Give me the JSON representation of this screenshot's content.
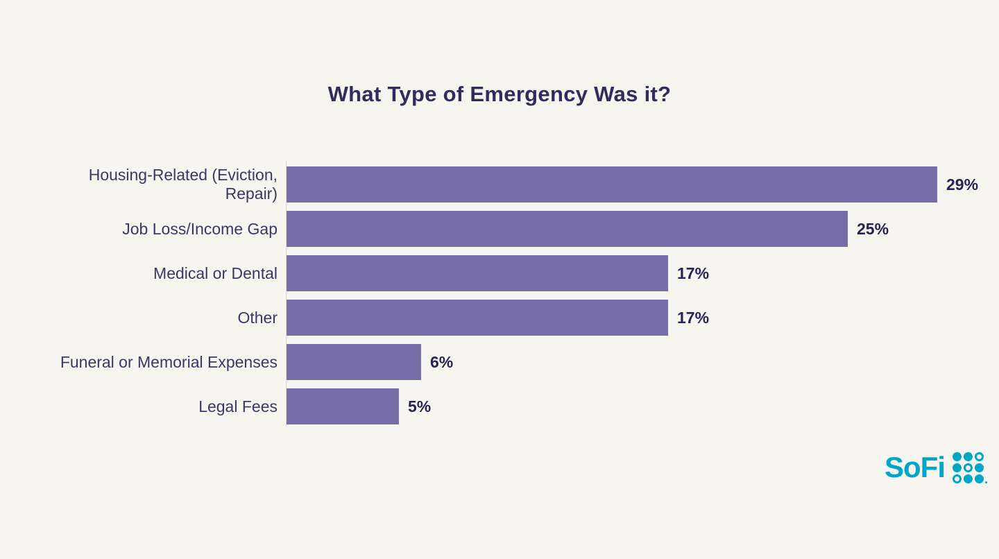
{
  "chart_data": {
    "type": "bar",
    "orientation": "horizontal",
    "title": "What Type of Emergency Was it?",
    "categories": [
      "Housing-Related (Eviction, Repair)",
      "Job Loss/Income Gap",
      "Medical or Dental",
      "Other",
      "Funeral or Memorial Expenses",
      "Legal Fees"
    ],
    "values": [
      29,
      25,
      17,
      17,
      6,
      5
    ],
    "value_suffix": "%",
    "xlim": [
      0,
      29
    ],
    "grid": false,
    "legend": "none",
    "bar_color": "#766ca8",
    "title_color": "#302c5e",
    "category_label_color": "#3a3768",
    "value_label_color": "#272254",
    "background_color": "#f7f5f0"
  },
  "footer": {
    "logo_text": "SoFi",
    "logo_color": "#00a6c7",
    "logo_dots_pattern": [
      [
        "filled",
        "filled",
        "ring"
      ],
      [
        "filled",
        "ring",
        "filled"
      ],
      [
        "ring",
        "filled",
        "filled"
      ]
    ]
  }
}
